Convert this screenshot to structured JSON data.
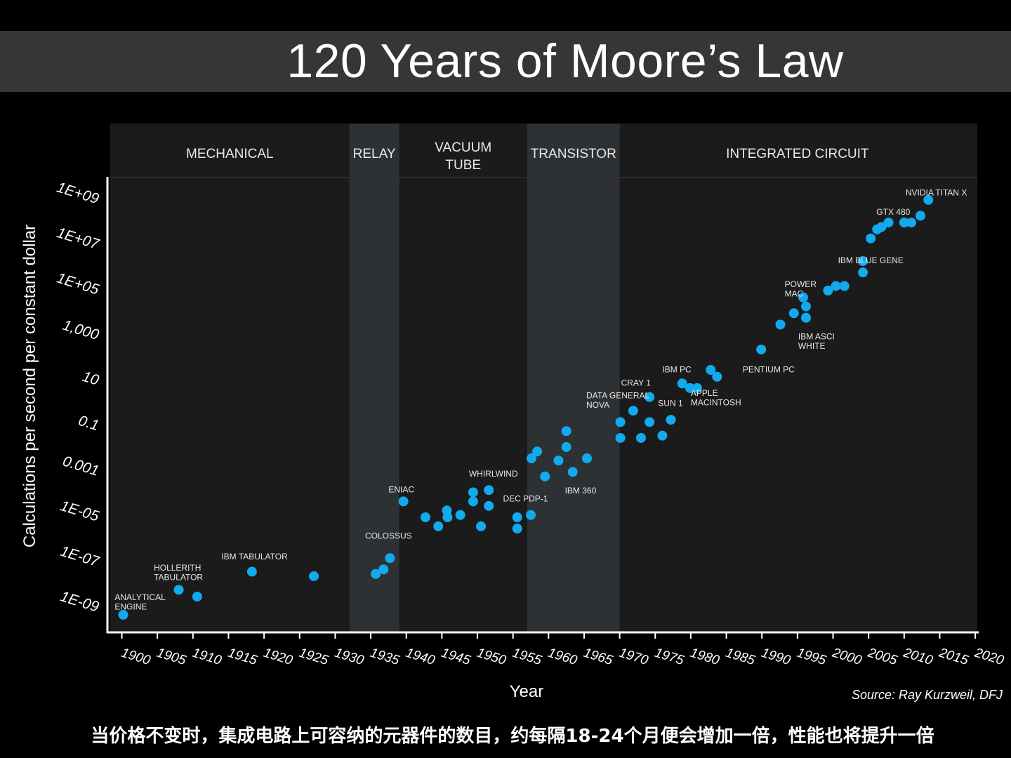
{
  "title": "120 Years of Moore’s Law",
  "caption": "当价格不变时，集成电路上可容纳的元器件的数目，约每隔18-24个月便会增加一倍，性能也将提升一倍",
  "source": "Source: Ray Kurzweil, DFJ",
  "colors": {
    "background": "#000000",
    "plot_bg": "#1b1b1b",
    "band": "#2e3133",
    "point": "#12aaee",
    "text": "#ffffff"
  },
  "chart_data": {
    "type": "scatter",
    "xlabel": "Year",
    "ylabel": "Calculations per second per constant dollar",
    "xlim": [
      1897,
      2020
    ],
    "ylim_log10": [
      -10,
      10
    ],
    "y_scale": "log",
    "x_ticks": [
      "1900",
      "1905",
      "1910",
      "1915",
      "1920",
      "1925",
      "1930",
      "1935",
      "1940",
      "1945",
      "1950",
      "1955",
      "1960",
      "1965",
      "1970",
      "1975",
      "1980",
      "1985",
      "1990",
      "1995",
      "2000",
      "2005",
      "2010",
      "2015",
      "2020"
    ],
    "y_ticks": [
      {
        "label": "1E+09",
        "log10": 9
      },
      {
        "label": "1E+07",
        "log10": 7
      },
      {
        "label": "1E+05",
        "log10": 5
      },
      {
        "label": "1,000",
        "log10": 3
      },
      {
        "label": "10",
        "log10": 1
      },
      {
        "label": "0.1",
        "log10": -1
      },
      {
        "label": "0.001",
        "log10": -3
      },
      {
        "label": "1E-05",
        "log10": -5
      },
      {
        "label": "1E-07",
        "log10": -7
      },
      {
        "label": "1E-09",
        "log10": -9
      }
    ],
    "eras": [
      {
        "label": "MECHANICAL",
        "from": 1897,
        "to": 1932,
        "shaded": false
      },
      {
        "label": "RELAY",
        "from": 1932,
        "to": 1939,
        "shaded": true
      },
      {
        "label": "VACUUM\nTUBE",
        "from": 1939,
        "to": 1957,
        "shaded": false
      },
      {
        "label": "TRANSISTOR",
        "from": 1957,
        "to": 1970,
        "shaded": true
      },
      {
        "label": "INTEGRATED CIRCUIT",
        "from": 1970,
        "to": 2020,
        "shaded": false
      }
    ],
    "points": [
      [
        1900.2,
        -9.3
      ],
      [
        1908.0,
        -8.2
      ],
      [
        1910.6,
        -8.5
      ],
      [
        1918.3,
        -7.4
      ],
      [
        1927.0,
        -7.6
      ],
      [
        1935.7,
        -7.5
      ],
      [
        1936.8,
        -7.3
      ],
      [
        1937.7,
        -6.8
      ],
      [
        1939.6,
        -4.3
      ],
      [
        1942.7,
        -5.0
      ],
      [
        1944.5,
        -5.4
      ],
      [
        1945.7,
        -4.7
      ],
      [
        1945.8,
        -5.0
      ],
      [
        1947.6,
        -4.9
      ],
      [
        1949.4,
        -3.9
      ],
      [
        1949.4,
        -4.3
      ],
      [
        1950.5,
        -5.4
      ],
      [
        1951.6,
        -3.8
      ],
      [
        1951.6,
        -4.5
      ],
      [
        1955.6,
        -5.5
      ],
      [
        1955.6,
        -5.0
      ],
      [
        1957.5,
        -4.9
      ],
      [
        1957.6,
        -2.4
      ],
      [
        1958.4,
        -2.1
      ],
      [
        1959.5,
        -3.2
      ],
      [
        1961.4,
        -2.5
      ],
      [
        1962.5,
        -1.9
      ],
      [
        1962.5,
        -1.2
      ],
      [
        1963.4,
        -3.0
      ],
      [
        1965.4,
        -2.4
      ],
      [
        1970.1,
        -0.8
      ],
      [
        1970.1,
        -1.5
      ],
      [
        1971.9,
        -0.3
      ],
      [
        1974.2,
        0.3
      ],
      [
        1974.2,
        -0.8
      ],
      [
        1973.0,
        -1.5
      ],
      [
        1976.0,
        -1.4
      ],
      [
        1977.2,
        -0.7
      ],
      [
        1978.8,
        0.9
      ],
      [
        1979.9,
        0.7
      ],
      [
        1980.9,
        0.7
      ],
      [
        1982.8,
        1.5
      ],
      [
        1983.7,
        1.2
      ],
      [
        1989.9,
        2.4
      ],
      [
        1992.6,
        3.5
      ],
      [
        1994.5,
        4.0
      ],
      [
        1995.8,
        4.7
      ],
      [
        1996.2,
        3.8
      ],
      [
        1996.2,
        4.3
      ],
      [
        1999.3,
        5.0
      ],
      [
        2000.4,
        5.2
      ],
      [
        2001.6,
        5.2
      ],
      [
        2004.2,
        5.8
      ],
      [
        2004.2,
        6.3
      ],
      [
        2005.3,
        7.3
      ],
      [
        2006.2,
        7.7
      ],
      [
        2006.8,
        7.8
      ],
      [
        2007.8,
        8.0
      ],
      [
        2010.0,
        8.0
      ],
      [
        2011.0,
        8.0
      ],
      [
        2012.3,
        8.3
      ],
      [
        2013.4,
        9.0
      ]
    ],
    "annotations": [
      {
        "text": "ANALYTICAL\nENGINE",
        "x": 1899,
        "log10": -8.65
      },
      {
        "text": "HOLLERITH\nTABULATOR",
        "x": 1904.5,
        "log10": -7.35
      },
      {
        "text": "IBM TABULATOR",
        "x": 1914,
        "log10": -6.85
      },
      {
        "text": "COLOSSUS",
        "x": 1934.2,
        "log10": -5.95
      },
      {
        "text": "ENIAC",
        "x": 1937.5,
        "log10": -3.9
      },
      {
        "text": "WHIRLWIND",
        "x": 1948.8,
        "log10": -3.2
      },
      {
        "text": "DEC PDP-1",
        "x": 1953.6,
        "log10": -4.3
      },
      {
        "text": "IBM 360",
        "x": 1962.3,
        "log10": -3.95
      },
      {
        "text": "DATA GENERAL\nNOVA",
        "x": 1965.3,
        "log10": 0.25
      },
      {
        "text": "CRAY 1",
        "x": 1970.2,
        "log10": 0.8
      },
      {
        "text": "SUN 1",
        "x": 1975.4,
        "log10": -0.1
      },
      {
        "text": "IBM PC",
        "x": 1976.0,
        "log10": 1.4
      },
      {
        "text": "APPLE\nMACINTOSH",
        "x": 1980.0,
        "log10": 0.35
      },
      {
        "text": "PENTIUM PC",
        "x": 1987.3,
        "log10": 1.4
      },
      {
        "text": "POWER\nMAC",
        "x": 1993.2,
        "log10": 5.15
      },
      {
        "text": "IBM ASCI\nWHITE",
        "x": 1995.1,
        "log10": 2.85
      },
      {
        "text": "IBM BLUE GENE",
        "x": 2000.7,
        "log10": 6.2
      },
      {
        "text": "GTX 480",
        "x": 2006.1,
        "log10": 8.35
      },
      {
        "text": "NVIDIA TITAN X",
        "x": 2010.2,
        "log10": 9.2
      }
    ]
  }
}
